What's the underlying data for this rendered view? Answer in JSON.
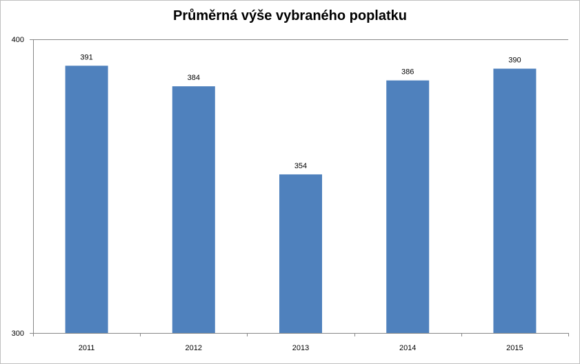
{
  "chart_data": {
    "type": "bar",
    "title": "Průměrná výše vybraného poplatku",
    "categories": [
      "2011",
      "2012",
      "2013",
      "2014",
      "2015"
    ],
    "values": [
      391,
      384,
      354,
      386,
      390
    ],
    "data_labels": [
      "391",
      "384",
      "354",
      "386",
      "390"
    ],
    "ylim": [
      300,
      400
    ],
    "y_ticks": [
      "300",
      "400"
    ],
    "grid": true,
    "legend": "none",
    "colors": {
      "bar": "#4f81bd",
      "grid": "#868686",
      "axis": "#868686"
    }
  }
}
